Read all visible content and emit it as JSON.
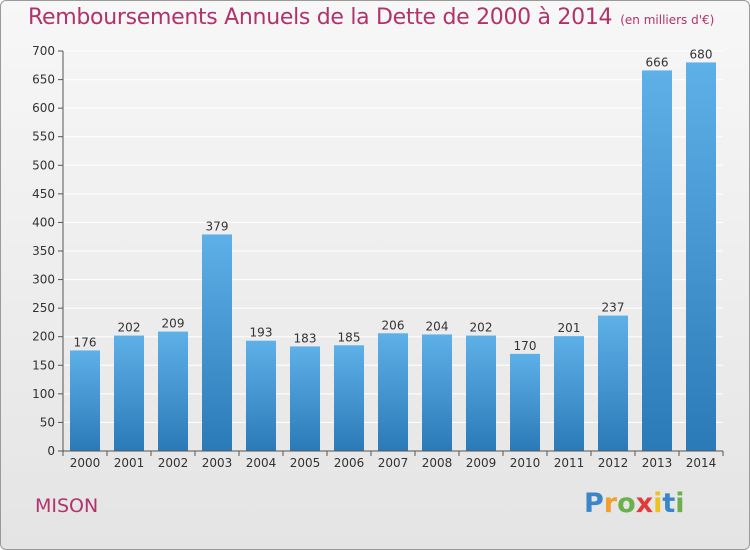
{
  "title": "Remboursements Annuels de la Dette de 2000 à 2014",
  "subtitle": "(en milliers d'€)",
  "commune": "MISON",
  "logo": {
    "letters": [
      "P",
      "r",
      "o",
      "x",
      "i",
      "t",
      "i"
    ],
    "colors": [
      "#3a86c8",
      "#f0a030",
      "#6ab04c",
      "#e03a3a",
      "#f0c020",
      "#3a86c8",
      "#6ab04c"
    ]
  },
  "chart_data": {
    "type": "bar",
    "categories": [
      "2000",
      "2001",
      "2002",
      "2003",
      "2004",
      "2005",
      "2006",
      "2007",
      "2008",
      "2009",
      "2010",
      "2011",
      "2012",
      "2013",
      "2014"
    ],
    "values": [
      176,
      202,
      209,
      379,
      193,
      183,
      185,
      206,
      204,
      202,
      170,
      201,
      237,
      666,
      680
    ],
    "ylim": [
      0,
      700
    ],
    "yticks": [
      0,
      50,
      100,
      150,
      200,
      250,
      300,
      350,
      400,
      450,
      500,
      550,
      600,
      650,
      700
    ],
    "grid": true,
    "colors": {
      "bar_top": "#5eb0e8",
      "bar_bottom": "#2b7ab8",
      "grid": "#ffffff",
      "text": "#333333",
      "accent": "#b0336b"
    }
  }
}
